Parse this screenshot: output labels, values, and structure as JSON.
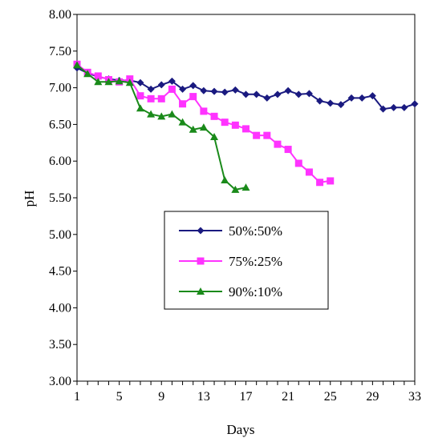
{
  "chart_data": {
    "type": "line",
    "title": "",
    "xlabel": "Days",
    "ylabel": "pH",
    "xlim": [
      1,
      33
    ],
    "ylim": [
      3.0,
      8.0
    ],
    "x_ticks": [
      1,
      5,
      9,
      13,
      17,
      21,
      25,
      29,
      33
    ],
    "y_ticks": [
      3.0,
      3.5,
      4.0,
      4.5,
      5.0,
      5.5,
      6.0,
      6.5,
      7.0,
      7.5,
      8.0
    ],
    "y_tick_labels": [
      "3.00",
      "3.50",
      "4.00",
      "4.50",
      "5.00",
      "5.50",
      "6.00",
      "6.50",
      "7.00",
      "7.50",
      "8.00"
    ],
    "grid": false,
    "legend_position": "center",
    "series": [
      {
        "name": "50%:50%",
        "color": "#1a1a80",
        "marker": "diamond",
        "x": [
          1,
          2,
          3,
          4,
          5,
          6,
          7,
          8,
          9,
          10,
          11,
          12,
          13,
          14,
          15,
          16,
          17,
          18,
          19,
          20,
          21,
          22,
          23,
          24,
          25,
          26,
          27,
          28,
          29,
          30,
          31,
          32,
          33
        ],
        "y": [
          7.27,
          7.2,
          7.15,
          7.12,
          7.1,
          7.1,
          7.07,
          6.98,
          7.04,
          7.09,
          6.98,
          7.03,
          6.96,
          6.95,
          6.94,
          6.97,
          6.91,
          6.91,
          6.86,
          6.91,
          6.96,
          6.91,
          6.92,
          6.82,
          6.79,
          6.77,
          6.86,
          6.86,
          6.89,
          6.71,
          6.73,
          6.73,
          6.78
        ]
      },
      {
        "name": "75%:25%",
        "color": "#ff33ff",
        "marker": "square",
        "x": [
          1,
          2,
          3,
          4,
          5,
          6,
          7,
          8,
          9,
          10,
          11,
          12,
          13,
          14,
          15,
          16,
          17,
          18,
          19,
          20,
          21,
          22,
          23,
          24,
          25
        ],
        "y": [
          7.32,
          7.21,
          7.16,
          7.11,
          7.08,
          7.12,
          6.89,
          6.85,
          6.85,
          6.98,
          6.78,
          6.88,
          6.68,
          6.61,
          6.53,
          6.49,
          6.44,
          6.35,
          6.35,
          6.23,
          6.16,
          5.97,
          5.85,
          5.71,
          5.73
        ]
      },
      {
        "name": "90%:10%",
        "color": "#1a8a1a",
        "marker": "triangle",
        "x": [
          1,
          2,
          3,
          4,
          5,
          6,
          7,
          8,
          9,
          10,
          11,
          12,
          13,
          14,
          15,
          16,
          17
        ],
        "y": [
          7.31,
          7.19,
          7.08,
          7.08,
          7.09,
          7.07,
          6.72,
          6.64,
          6.61,
          6.64,
          6.53,
          6.43,
          6.46,
          6.33,
          5.74,
          5.61,
          5.64
        ]
      }
    ]
  }
}
